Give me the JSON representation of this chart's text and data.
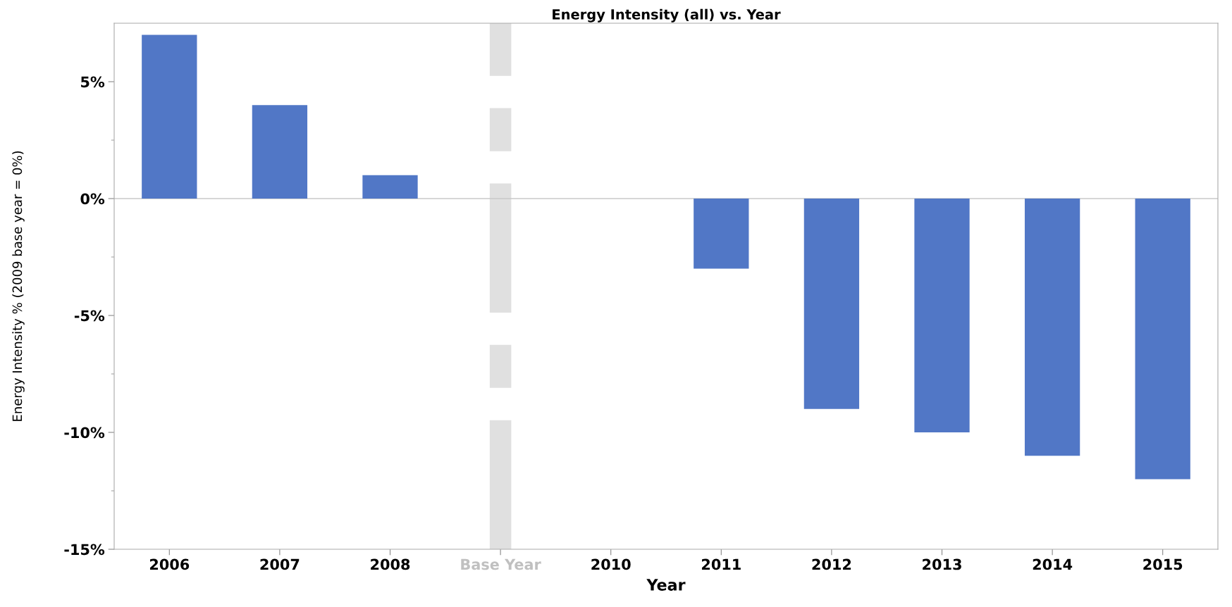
{
  "chart_data": {
    "type": "bar",
    "title": "Energy Intensity (all) vs. Year",
    "xlabel": "Year",
    "ylabel": "Energy Intensity % (2009 base year = 0%)",
    "categories": [
      "2006",
      "2007",
      "2008",
      "Base Year",
      "2010",
      "2011",
      "2012",
      "2013",
      "2014",
      "2015"
    ],
    "values": [
      7,
      4,
      1,
      null,
      null,
      -3,
      -9,
      -10,
      -11,
      -12
    ],
    "color": "#5177c6",
    "ylim": [
      -15,
      7.5
    ],
    "yticks": [
      {
        "value": -15,
        "label": "-15%"
      },
      {
        "value": -12.5,
        "label": null
      },
      {
        "value": -10,
        "label": "-10%"
      },
      {
        "value": -7.5,
        "label": null
      },
      {
        "value": -5,
        "label": "-5%"
      },
      {
        "value": -2.5,
        "label": null
      },
      {
        "value": 0,
        "label": "0%"
      },
      {
        "value": 2.5,
        "label": null
      },
      {
        "value": 5,
        "label": "5%"
      }
    ],
    "ref_lines": [
      {
        "axis": "x",
        "value": "Base Year",
        "color": "#e0e0e0",
        "line_style": "dashed"
      },
      {
        "axis": "y",
        "value": 0,
        "color": "#c8c8c8",
        "line_style": "solid"
      }
    ],
    "grid": false,
    "legend": false
  }
}
